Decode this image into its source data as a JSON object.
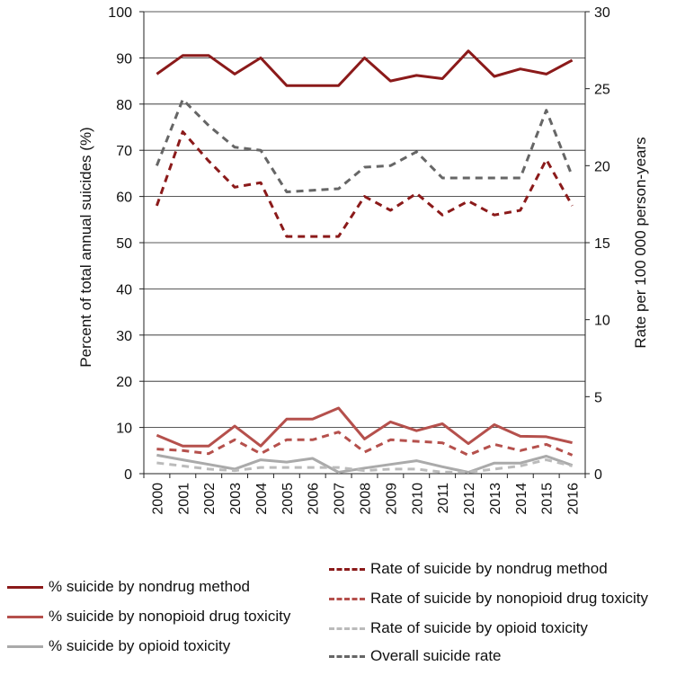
{
  "chart_data": {
    "type": "line",
    "categories": [
      "2000",
      "2001",
      "2002",
      "2003",
      "2004",
      "2005",
      "2006",
      "2007",
      "2008",
      "2009",
      "2010",
      "2011",
      "2012",
      "2013",
      "2014",
      "2015",
      "2016"
    ],
    "y_left": {
      "label": "Percent of total annual suicides (%)",
      "range": [
        0,
        100
      ],
      "ticks": [
        0,
        10,
        20,
        30,
        40,
        50,
        60,
        70,
        80,
        90,
        100
      ]
    },
    "y_right": {
      "label": "Rate per 100 000 person-years",
      "range": [
        0,
        30
      ],
      "ticks": [
        0,
        5,
        10,
        15,
        20,
        25,
        30
      ]
    },
    "series": [
      {
        "name": "% suicide by nondrug method",
        "axis": "left",
        "style": "solid",
        "color": "#8B1A1A",
        "values": [
          86.5,
          90.5,
          90.5,
          86.5,
          90,
          84,
          84,
          84,
          90,
          85,
          86.2,
          85.5,
          91.5,
          86,
          87.6,
          86.5,
          89.5
        ]
      },
      {
        "name": "% suicide by nonopioid drug toxicity",
        "axis": "left",
        "style": "solid",
        "color": "#B5504C",
        "values": [
          8.3,
          6,
          6,
          10.3,
          6,
          11.8,
          11.8,
          14.2,
          7.5,
          11.2,
          9.3,
          10.8,
          6.5,
          10.6,
          8.1,
          8,
          6.7
        ]
      },
      {
        "name": "% suicide by opioid toxicity",
        "axis": "left",
        "style": "solid",
        "color": "#AAAAAA",
        "values": [
          4,
          3,
          2,
          1,
          3,
          2.5,
          3.3,
          0.3,
          1.2,
          2,
          2.8,
          1.5,
          0.3,
          2.3,
          2.3,
          3.8,
          1.8
        ]
      },
      {
        "name": "Rate of suicide by nondrug method",
        "axis": "right",
        "style": "dashed",
        "color": "#8B1A1A",
        "values": [
          17.4,
          22.2,
          20.3,
          18.6,
          18.9,
          15.4,
          15.4,
          15.4,
          18,
          17.1,
          18.2,
          16.8,
          17.7,
          16.8,
          17.1,
          20.4,
          17.4
        ]
      },
      {
        "name": "Rate of suicide by nonopioid drug toxicity",
        "axis": "right",
        "style": "dashed",
        "color": "#B5504C",
        "values": [
          1.6,
          1.5,
          1.3,
          2.2,
          1.3,
          2.2,
          2.2,
          2.7,
          1.4,
          2.2,
          2.1,
          2,
          1.2,
          1.9,
          1.5,
          1.9,
          1.2
        ]
      },
      {
        "name": "Rate of suicide by opioid toxicity",
        "axis": "right",
        "style": "dashed",
        "color": "#BBBBBB",
        "values": [
          0.7,
          0.5,
          0.3,
          0.2,
          0.4,
          0.4,
          0.4,
          0.4,
          0.2,
          0.3,
          0.3,
          0.1,
          0.1,
          0.3,
          0.5,
          0.9,
          0.5
        ]
      },
      {
        "name": "Overall suicide rate",
        "axis": "right",
        "style": "dashed",
        "color": "#666666",
        "values": [
          20,
          24.3,
          22.6,
          21.2,
          21,
          18.3,
          18.4,
          18.5,
          19.9,
          20,
          20.9,
          19.2,
          19.2,
          19.2,
          19.2,
          23.6,
          19.3
        ]
      }
    ],
    "legend": {
      "left": [
        "% suicide by nondrug method",
        "% suicide by nonopioid drug toxicity",
        "% suicide by opioid toxicity"
      ],
      "right": [
        "Rate of suicide by nondrug method",
        "Rate of suicide by nonopioid drug toxicity",
        "Rate of suicide by opioid toxicity",
        "Overall suicide rate"
      ]
    },
    "grid": true
  }
}
